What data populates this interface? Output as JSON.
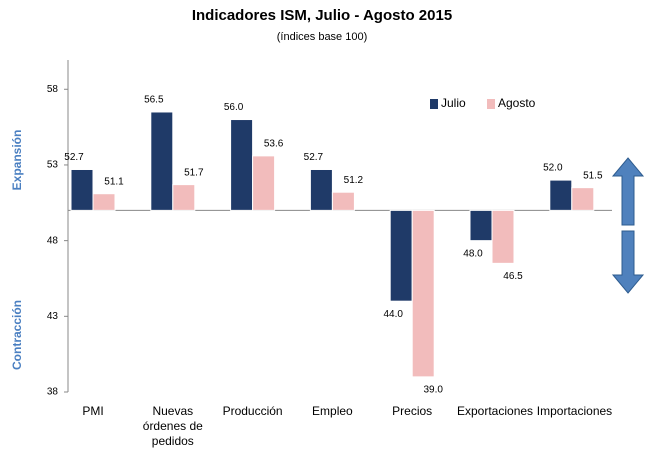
{
  "chart_data": {
    "type": "bar",
    "title": "Indicadores ISM, Julio - Agosto 2015",
    "subtitle": "(índices base 100)",
    "y_label_upper": "Expansión",
    "y_label_lower": "Contracción",
    "categories": [
      "PMI",
      "Nuevas órdenes de pedidos",
      "Producción",
      "Empleo",
      "Precios",
      "Exportaciones",
      "Importaciones"
    ],
    "series": [
      {
        "name": "Julio",
        "color": "#1f3a68",
        "values": [
          52.7,
          56.5,
          56.0,
          52.7,
          44.0,
          48.0,
          52.0
        ],
        "value_labels": [
          "52.7",
          "56.5",
          "56.0",
          "52.7",
          "44.0",
          "48.0",
          "52.0"
        ]
      },
      {
        "name": "Agosto",
        "color": "#f2bcbc",
        "values": [
          51.1,
          51.7,
          53.6,
          51.2,
          39.0,
          46.5,
          51.5
        ],
        "value_labels": [
          "51.1",
          "51.7",
          "53.6",
          "51.2",
          "39.0",
          "46.5",
          "51.5"
        ]
      }
    ],
    "baseline": 50,
    "ylim": [
      38,
      60
    ],
    "yticks": [
      38,
      43,
      48,
      53,
      58
    ],
    "legend": "upper right"
  }
}
